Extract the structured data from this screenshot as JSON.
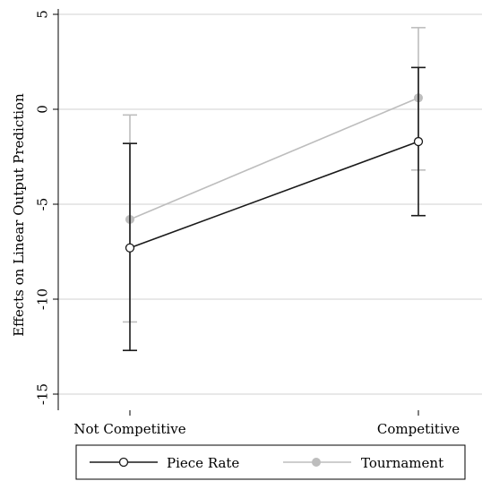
{
  "chart_data": {
    "type": "line",
    "title": "",
    "xlabel": "",
    "ylabel": "Effects on Linear Output Prediction",
    "categories": [
      "Not Competitive",
      "Competitive"
    ],
    "ylim": [
      -15.5,
      5
    ],
    "yticks": [
      5,
      0,
      -5,
      -10,
      -15
    ],
    "ytick_labels": [
      "5",
      "0",
      "-5",
      "-10",
      "-15"
    ],
    "grid": true,
    "legend_position": "bottom",
    "series": [
      {
        "name": "Piece Rate",
        "color": "#1a1a1a",
        "marker": "hollow-circle",
        "values": [
          -7.3,
          -1.7
        ],
        "ci_low": [
          -12.7,
          -5.6
        ],
        "ci_high": [
          -1.8,
          2.2
        ]
      },
      {
        "name": "Tournament",
        "color": "#bdbdbd",
        "marker": "filled-circle",
        "values": [
          -5.8,
          0.6
        ],
        "ci_low": [
          -11.2,
          -3.2
        ],
        "ci_high": [
          -0.3,
          4.3
        ]
      }
    ]
  }
}
